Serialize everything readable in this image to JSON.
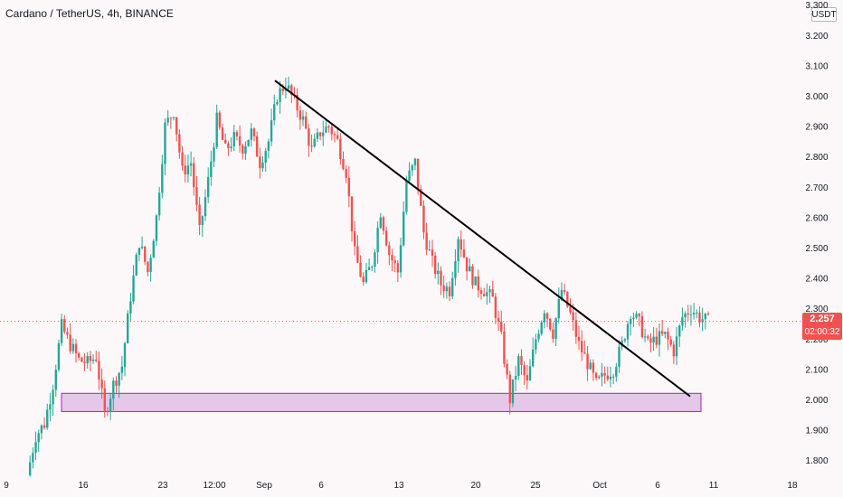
{
  "header": {
    "title": "Cardano / TetherUS, 4h, BINANCE"
  },
  "price_axis": {
    "unit": "USDT"
  },
  "last_price": {
    "value": "2.257",
    "countdown": "02:00:32"
  },
  "colors": {
    "up": "#26a69a",
    "down": "#ef5350",
    "zone_fill": "#e1bee7",
    "zone_stroke": "#9c27b0",
    "trendline": "#000000",
    "text": "#131722",
    "background": "#fcf8f9"
  },
  "chart_data": {
    "type": "candlestick",
    "title": "Cardano / TetherUS, 4h, BINANCE",
    "ylim": [
      1.76,
      3.32
    ],
    "y_ticks": [
      1.8,
      1.9,
      2.0,
      2.1,
      2.2,
      2.3,
      2.4,
      2.5,
      2.6,
      2.7,
      2.8,
      2.9,
      3.0,
      3.1,
      3.2,
      3.3
    ],
    "y_tick_labels": [
      "1.800",
      "1.900",
      "2.000",
      "2.100",
      "2.200",
      "2.300",
      "2.400",
      "2.500",
      "2.600",
      "2.700",
      "2.800",
      "2.900",
      "3.000",
      "3.100",
      "3.200",
      "3.300"
    ],
    "x_tick_labels": [
      "9",
      "16",
      "23",
      "12:00",
      "Sep",
      "6",
      "13",
      "20",
      "25",
      "Oct",
      "6",
      "11",
      "18"
    ],
    "last_price": 2.257,
    "price_path": [
      {
        "x": 0,
        "y": 1.75
      },
      {
        "x": 1,
        "y": 1.88
      },
      {
        "x": 2,
        "y": 1.92
      },
      {
        "x": 3,
        "y": 2.05
      },
      {
        "x": 4,
        "y": 2.24
      },
      {
        "x": 5,
        "y": 2.18
      },
      {
        "x": 6,
        "y": 2.13
      },
      {
        "x": 7,
        "y": 2.12
      },
      {
        "x": 8,
        "y": 2.14
      },
      {
        "x": 9,
        "y": 1.95
      },
      {
        "x": 10,
        "y": 2.05
      },
      {
        "x": 11,
        "y": 2.11
      },
      {
        "x": 12,
        "y": 2.34
      },
      {
        "x": 13,
        "y": 2.52
      },
      {
        "x": 14,
        "y": 2.42
      },
      {
        "x": 15,
        "y": 2.6
      },
      {
        "x": 16,
        "y": 2.9
      },
      {
        "x": 17,
        "y": 2.95
      },
      {
        "x": 18,
        "y": 2.75
      },
      {
        "x": 19,
        "y": 2.78
      },
      {
        "x": 20,
        "y": 2.55
      },
      {
        "x": 21,
        "y": 2.72
      },
      {
        "x": 22,
        "y": 2.92
      },
      {
        "x": 23,
        "y": 2.82
      },
      {
        "x": 24,
        "y": 2.86
      },
      {
        "x": 25,
        "y": 2.83
      },
      {
        "x": 26,
        "y": 2.88
      },
      {
        "x": 27,
        "y": 2.78
      },
      {
        "x": 28,
        "y": 2.85
      },
      {
        "x": 29,
        "y": 3.0
      },
      {
        "x": 30,
        "y": 3.04
      },
      {
        "x": 31,
        "y": 2.98
      },
      {
        "x": 32,
        "y": 2.92
      },
      {
        "x": 33,
        "y": 2.82
      },
      {
        "x": 34,
        "y": 2.88
      },
      {
        "x": 35,
        "y": 2.9
      },
      {
        "x": 36,
        "y": 2.85
      },
      {
        "x": 37,
        "y": 2.75
      },
      {
        "x": 38,
        "y": 2.48
      },
      {
        "x": 39,
        "y": 2.38
      },
      {
        "x": 40,
        "y": 2.45
      },
      {
        "x": 41,
        "y": 2.62
      },
      {
        "x": 42,
        "y": 2.48
      },
      {
        "x": 43,
        "y": 2.42
      },
      {
        "x": 44,
        "y": 2.72
      },
      {
        "x": 45,
        "y": 2.78
      },
      {
        "x": 46,
        "y": 2.55
      },
      {
        "x": 47,
        "y": 2.45
      },
      {
        "x": 48,
        "y": 2.38
      },
      {
        "x": 49,
        "y": 2.36
      },
      {
        "x": 50,
        "y": 2.54
      },
      {
        "x": 51,
        "y": 2.44
      },
      {
        "x": 52,
        "y": 2.38
      },
      {
        "x": 53,
        "y": 2.36
      },
      {
        "x": 54,
        "y": 2.33
      },
      {
        "x": 55,
        "y": 2.2
      },
      {
        "x": 56,
        "y": 2.0
      },
      {
        "x": 57,
        "y": 2.13
      },
      {
        "x": 58,
        "y": 2.05
      },
      {
        "x": 59,
        "y": 2.2
      },
      {
        "x": 60,
        "y": 2.3
      },
      {
        "x": 61,
        "y": 2.22
      },
      {
        "x": 62,
        "y": 2.36
      },
      {
        "x": 63,
        "y": 2.28
      },
      {
        "x": 64,
        "y": 2.18
      },
      {
        "x": 65,
        "y": 2.12
      },
      {
        "x": 66,
        "y": 2.05
      },
      {
        "x": 67,
        "y": 2.08
      },
      {
        "x": 68,
        "y": 2.1
      },
      {
        "x": 69,
        "y": 2.18
      },
      {
        "x": 70,
        "y": 2.29
      },
      {
        "x": 71,
        "y": 2.25
      },
      {
        "x": 72,
        "y": 2.18
      },
      {
        "x": 73,
        "y": 2.2
      },
      {
        "x": 74,
        "y": 2.21
      },
      {
        "x": 75,
        "y": 2.16
      },
      {
        "x": 76,
        "y": 2.27
      },
      {
        "x": 77,
        "y": 2.3
      },
      {
        "x": 78,
        "y": 2.27
      },
      {
        "x": 79,
        "y": 2.257
      }
    ],
    "support_zone": {
      "y_min": 1.96,
      "y_max": 2.02
    },
    "trendline": {
      "start_y": 3.05,
      "end_y": 2.01
    }
  }
}
